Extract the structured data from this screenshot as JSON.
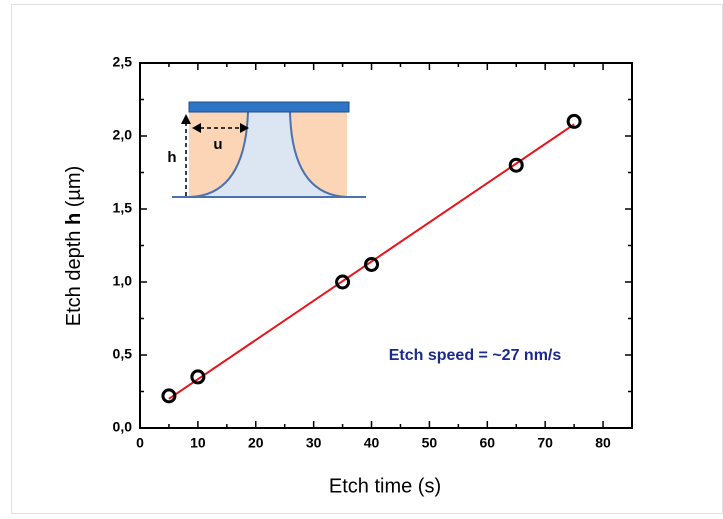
{
  "chart_data": {
    "type": "scatter",
    "xlabel": "Etch time (s)",
    "ylabel": [
      "Etch depth ",
      "h",
      " (µm)"
    ],
    "annotation": "Etch speed = ~27 nm/s",
    "inset_labels": {
      "depth": "h",
      "undercut": "u"
    },
    "series": [
      {
        "color": "#000000",
        "x": [
          5,
          10,
          35,
          40,
          65,
          75
        ],
        "values": [
          0.22,
          0.35,
          1.0,
          1.12,
          1.8,
          2.1
        ]
      },
      {
        "type": "line",
        "color": "#e8141a",
        "x": [
          5,
          75
        ],
        "values": [
          0.2,
          2.08
        ]
      }
    ],
    "xlim": [
      0,
      85
    ],
    "xticks": [
      0,
      10,
      20,
      30,
      40,
      50,
      60,
      70,
      80
    ],
    "xminorticks": [
      5,
      15,
      25,
      35,
      45,
      55,
      65,
      75,
      85
    ],
    "ylim": [
      0,
      2.5
    ],
    "yticks": [
      {
        "value": 0,
        "label": "0,0"
      },
      {
        "value": 0.5,
        "label": "0,5"
      },
      {
        "value": 1,
        "label": "1,0"
      },
      {
        "value": 1.5,
        "label": "1,5"
      },
      {
        "value": 2,
        "label": "2,0"
      },
      {
        "value": 2.5,
        "label": "2,5"
      }
    ],
    "yminorticks": [
      0.25,
      0.75,
      1.25,
      1.75,
      2.25
    ]
  }
}
